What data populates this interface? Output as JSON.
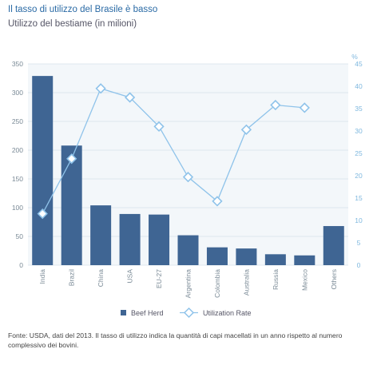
{
  "header": {
    "title": "Il tasso di utilizzo del Brasile è basso",
    "subtitle": "Utilizzo del bestiame (in milioni)"
  },
  "footnote": "Fonte: USDA, dati del 2013. Il tasso di utilizzo indica la quantità di capi macellati in un anno rispetto al numero complessivo dei bovini.",
  "colors": {
    "bar": "#3f6593",
    "line": "#8fc3ea",
    "marker_fill": "#ffffff",
    "panel": "#f3f7fa",
    "grid": "#d7e2ea",
    "left_axis_text": "#7a8a96",
    "right_axis_text": "#7fb8df"
  },
  "chart_data": {
    "type": "bar",
    "categories": [
      "India",
      "Brazil",
      "China",
      "USA",
      "EU-27",
      "Argentina",
      "Colombia",
      "Australia",
      "Russia",
      "Mexico",
      "Others"
    ],
    "series": [
      {
        "name": "Beef Herd",
        "type": "bar",
        "axis": "left",
        "values": [
          329,
          208,
          104,
          89,
          88,
          52,
          31,
          29,
          19,
          17,
          68
        ]
      },
      {
        "name": "Utilization Rate",
        "type": "line",
        "axis": "right",
        "values": [
          11.5,
          23.8,
          39.5,
          37.5,
          31.0,
          19.7,
          14.3,
          30.3,
          35.8,
          35.2,
          null
        ]
      }
    ],
    "y_left": {
      "min": 0,
      "max": 350,
      "ticks": [
        "0",
        "50",
        "100",
        "150",
        "200",
        "250",
        "300",
        "350"
      ]
    },
    "y_right": {
      "label": "%",
      "min": 0,
      "max": 45,
      "ticks": [
        "0",
        "5",
        "10",
        "15",
        "20",
        "25",
        "30",
        "35",
        "40",
        "45"
      ]
    },
    "grid": true,
    "legend_position": "bottom"
  }
}
